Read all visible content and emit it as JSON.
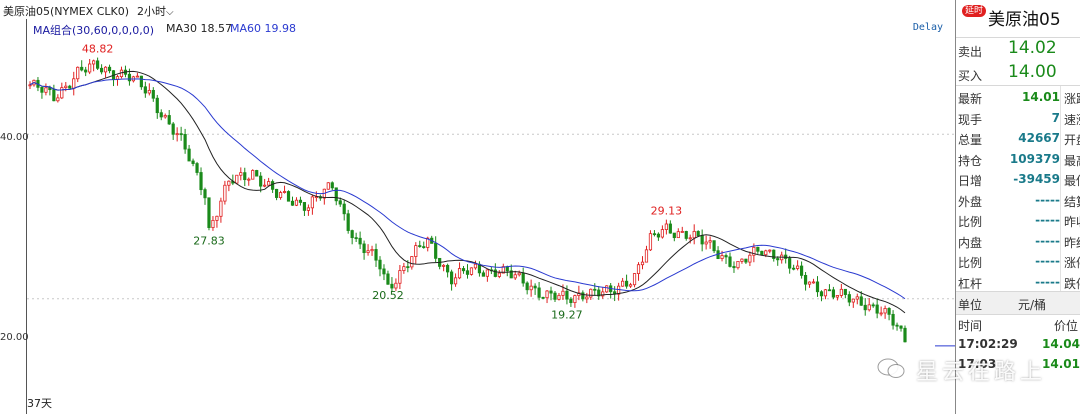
{
  "titlebar": {
    "symbol_code": "美原油05(NYMEX CLK0)",
    "period": "2小时",
    "period_caret": "⌵"
  },
  "indicator": {
    "ma_group_label": "MA组合(30,60,0,0,0,0)",
    "ma30_label": "MA30 18.57",
    "ma60_label": "MA60 19.98",
    "delay_label": "Delay",
    "ma_group_color": "#1a1aa0",
    "ma30_color": "#222222",
    "ma60_color": "#2a3ad0"
  },
  "yaxis": {
    "ticks": [
      "40.00",
      "20.00"
    ]
  },
  "footer_label": "37天",
  "chart_data": {
    "type": "candlestick",
    "ylim": [
      6,
      54
    ],
    "up_color": "#e02020",
    "down_color": "#1a8a1a",
    "annotations": [
      {
        "label": "48.82",
        "x_index": 17,
        "color": "#e02020",
        "position": "above-high"
      },
      {
        "label": "27.83",
        "x_index": 45,
        "color": "#1a6a1a",
        "position": "below-low"
      },
      {
        "label": "20.52",
        "x_index": 90,
        "color": "#1a6a1a",
        "position": "below-low"
      },
      {
        "label": "29.13",
        "x_index": 160,
        "color": "#e02020",
        "position": "above-high"
      },
      {
        "label": "19.27",
        "x_index": 135,
        "color": "#1a6a1a",
        "position": "below-low"
      }
    ]
  },
  "panel": {
    "badge": "延时",
    "name": "美原油05",
    "sell_label": "卖出",
    "sell_value": "14.02",
    "buy_label": "买入",
    "buy_value": "14.00",
    "stats": [
      {
        "label": "最新",
        "value": "14.01",
        "color": "#1a8a1a",
        "right": "涨跌"
      },
      {
        "label": "现手",
        "value": "7",
        "color": "#1a7a8a",
        "right": "速涨"
      },
      {
        "label": "总量",
        "value": "42667",
        "color": "#1a7a8a",
        "right": "开盘"
      },
      {
        "label": "持仓",
        "value": "109379",
        "color": "#1a7a8a",
        "right": "最高"
      },
      {
        "label": "日增",
        "value": "-39459",
        "color": "#1a7a8a",
        "right": "最低"
      },
      {
        "label": "外盘",
        "value": "-----",
        "color": "#1a7a8a",
        "right": "结算"
      },
      {
        "label": "比例",
        "value": "-----",
        "color": "#1a7a8a",
        "right": "昨收"
      },
      {
        "label": "内盘",
        "value": "-----",
        "color": "#1a7a8a",
        "right": "昨结"
      },
      {
        "label": "比例",
        "value": "-----",
        "color": "#1a7a8a",
        "right": "涨停"
      },
      {
        "label": "杠杆",
        "value": "-----",
        "color": "#1a7a8a",
        "right": "跌停"
      }
    ],
    "unit_label": "单位",
    "unit_value": "元/桶",
    "ticks_header_time": "时间",
    "ticks_header_price": "价位",
    "ticks": [
      {
        "time": "17:02:29",
        "price": "14.04"
      },
      {
        "time": "17:03",
        "price": "14.01"
      }
    ]
  },
  "watermark": {
    "text": "星云在路上"
  }
}
